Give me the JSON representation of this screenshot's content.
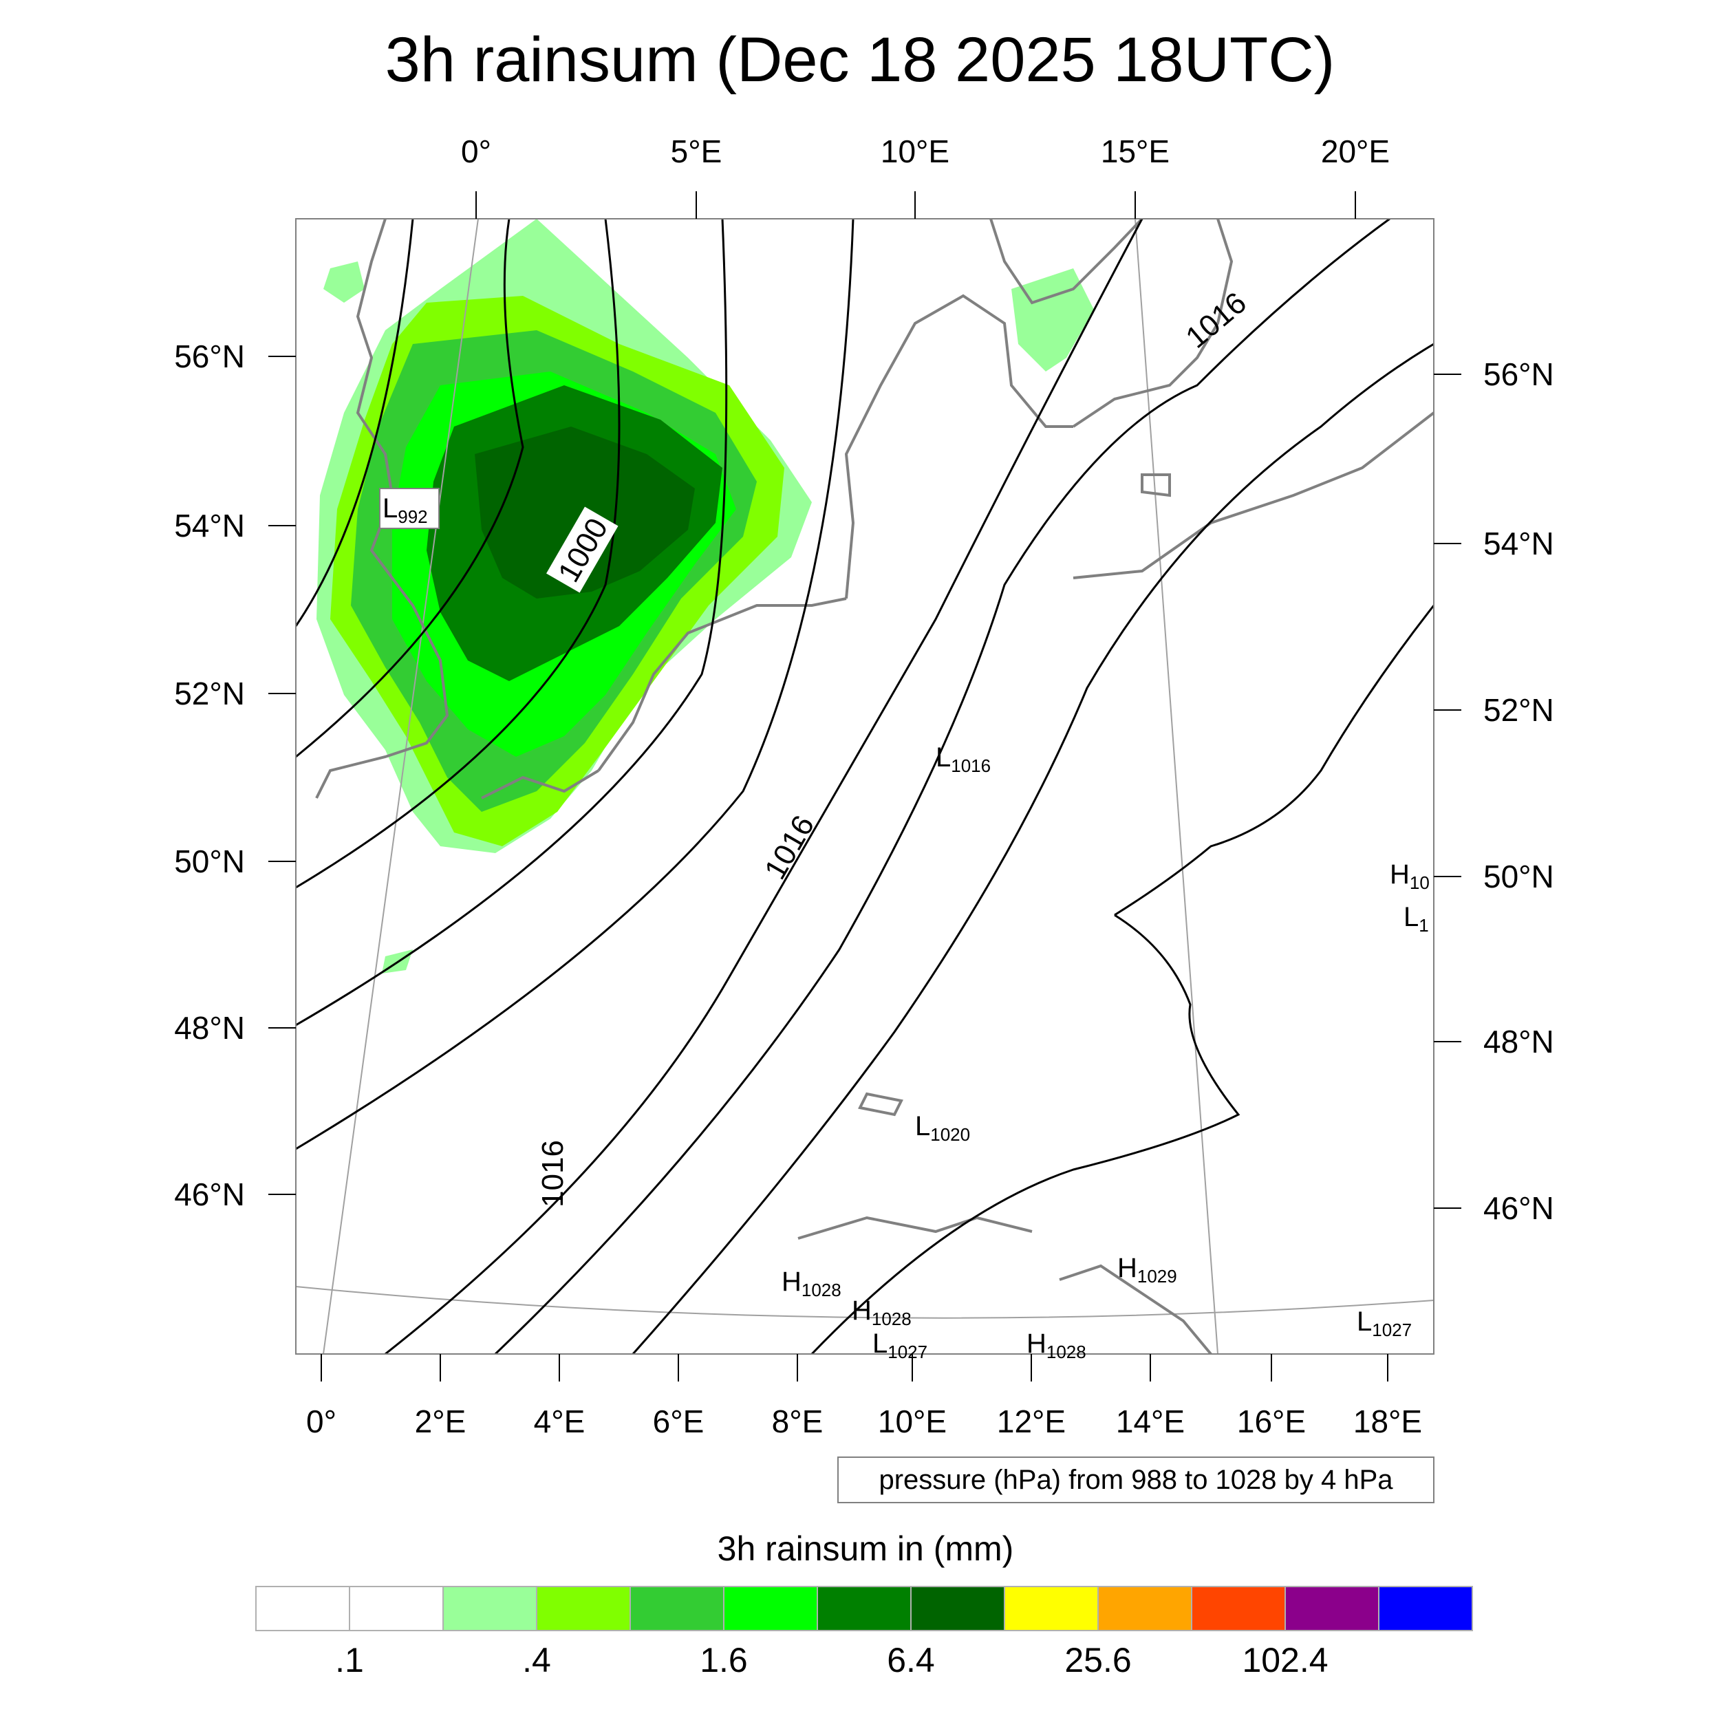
{
  "title": "3h rainsum (Dec 18 2025 18UTC)",
  "map": {
    "top_lon_labels": [
      "0°",
      "5°E",
      "10°E",
      "15°E",
      "20°E"
    ],
    "bottom_lon_labels": [
      "0°",
      "2°E",
      "4°E",
      "6°E",
      "8°E",
      "10°E",
      "12°E",
      "14°E",
      "16°E",
      "18°E"
    ],
    "left_lat_labels": [
      "56°N",
      "54°N",
      "52°N",
      "50°N",
      "48°N",
      "46°N"
    ],
    "right_lat_labels": [
      "56°N",
      "54°N",
      "52°N",
      "50°N",
      "48°N",
      "46°N"
    ],
    "contour_labels": [
      "1000",
      "1016",
      "1016",
      "1016"
    ],
    "pressure_centers": [
      {
        "kind": "L",
        "value": "992"
      },
      {
        "kind": "L",
        "value": "1016"
      },
      {
        "kind": "L",
        "value": "1020"
      },
      {
        "kind": "H",
        "value": "1028"
      },
      {
        "kind": "H",
        "value": "1028"
      },
      {
        "kind": "H",
        "value": "1029"
      },
      {
        "kind": "L",
        "value": "1027"
      },
      {
        "kind": "L",
        "value": "1027"
      },
      {
        "kind": "H",
        "value": "1028"
      },
      {
        "kind": "H",
        "value": "10"
      },
      {
        "kind": "L",
        "value": "1"
      }
    ],
    "pressure_info": "pressure (hPa) from 988 to 1028 by 4 hPa"
  },
  "colorbar": {
    "title": "3h rainsum in (mm)",
    "colors": [
      "#ffffff",
      "#ffffff",
      "#99ff99",
      "#80ff00",
      "#33cc33",
      "#00ff00",
      "#008000",
      "#006400",
      "#ffff00",
      "#ffa500",
      "#ff4500",
      "#8b008b",
      "#0000ff"
    ],
    "labels": [
      ".1",
      ".4",
      "1.6",
      "6.4",
      "25.6",
      "102.4"
    ]
  },
  "colors": {
    "coastline": "#808080",
    "contour": "#000000",
    "graticule": "#a0a0a0"
  }
}
